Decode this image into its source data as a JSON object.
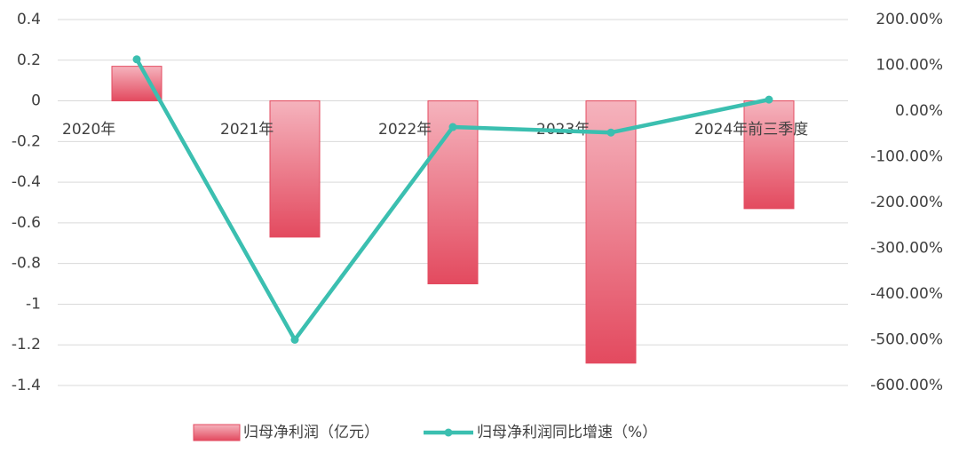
{
  "chart_data": {
    "type": "bar+line",
    "categories": [
      "2020年",
      "2021年",
      "2022年",
      "2023年",
      "2024年前三季度"
    ],
    "series": [
      {
        "name": "归母净利润（亿元）",
        "type": "bar",
        "color": "#e34a5f",
        "values": [
          0.17,
          -0.67,
          -0.9,
          -1.29,
          -0.53
        ]
      },
      {
        "name": "归母净利润同比增速（%）",
        "type": "line",
        "axis": "y2",
        "color": "#3bbfb0",
        "values": [
          113,
          -500,
          -35,
          -47,
          25
        ]
      }
    ],
    "ylim": [
      -1.4,
      0.4
    ],
    "yticks": [
      0.4,
      0.2,
      0,
      -0.2,
      -0.4,
      -0.6,
      -0.8,
      -1,
      -1.2,
      -1.4
    ],
    "y2lim": [
      -600,
      200
    ],
    "y2ticks": [
      {
        "value": 200,
        "label": "200.00%"
      },
      {
        "value": 100,
        "label": "100.00%"
      },
      {
        "value": 0,
        "label": "0.00%"
      },
      {
        "value": -100,
        "label": "-100.00%"
      },
      {
        "value": -200,
        "label": "-200.00%"
      },
      {
        "value": -300,
        "label": "-300.00%"
      },
      {
        "value": -400,
        "label": "-400.00%"
      },
      {
        "value": -500,
        "label": "-500.00%"
      },
      {
        "value": -600,
        "label": "-600.00%"
      }
    ],
    "grid": true,
    "legend": "bottom"
  }
}
